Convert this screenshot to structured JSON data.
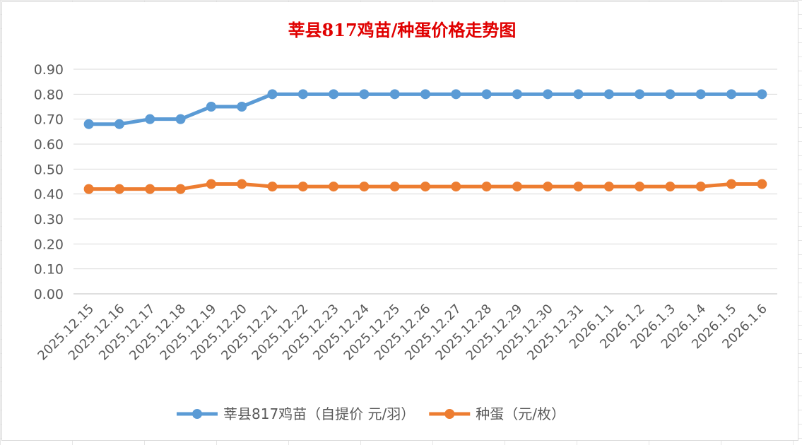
{
  "chart_data": {
    "type": "line",
    "title": "莘县817鸡苗/种蛋价格走势图",
    "categories": [
      "2025.12.15",
      "2025.12.16",
      "2025.12.17",
      "2025.12.18",
      "2025.12.19",
      "2025.12.20",
      "2025.12.21",
      "2025.12.22",
      "2025.12.23",
      "2025.12.24",
      "2025.12.25",
      "2025.12.26",
      "2025.12.27",
      "2025.12.28",
      "2025.12.29",
      "2025.12.30",
      "2025.12.31",
      "2026.1.1",
      "2026.1.2",
      "2026.1.3",
      "2026.1.4",
      "2026.1.5",
      "2026.1.6"
    ],
    "series": [
      {
        "name": "莘县817鸡苗（自提价 元/羽）",
        "color": "#5b9bd5",
        "values": [
          0.68,
          0.68,
          0.7,
          0.7,
          0.75,
          0.75,
          0.8,
          0.8,
          0.8,
          0.8,
          0.8,
          0.8,
          0.8,
          0.8,
          0.8,
          0.8,
          0.8,
          0.8,
          0.8,
          0.8,
          0.8,
          0.8,
          0.8
        ]
      },
      {
        "name": "种蛋（元/枚）",
        "color": "#ed7d31",
        "values": [
          0.42,
          0.42,
          0.42,
          0.42,
          0.44,
          0.44,
          0.43,
          0.43,
          0.43,
          0.43,
          0.43,
          0.43,
          0.43,
          0.43,
          0.43,
          0.43,
          0.43,
          0.43,
          0.43,
          0.43,
          0.43,
          0.44,
          0.44
        ]
      }
    ],
    "ylim": [
      0,
      0.9
    ],
    "yticks": [
      "0.00",
      "0.10",
      "0.20",
      "0.30",
      "0.40",
      "0.50",
      "0.60",
      "0.70",
      "0.80",
      "0.90"
    ],
    "grid": true,
    "legend": "bottom",
    "xlabel": "",
    "ylabel": ""
  }
}
